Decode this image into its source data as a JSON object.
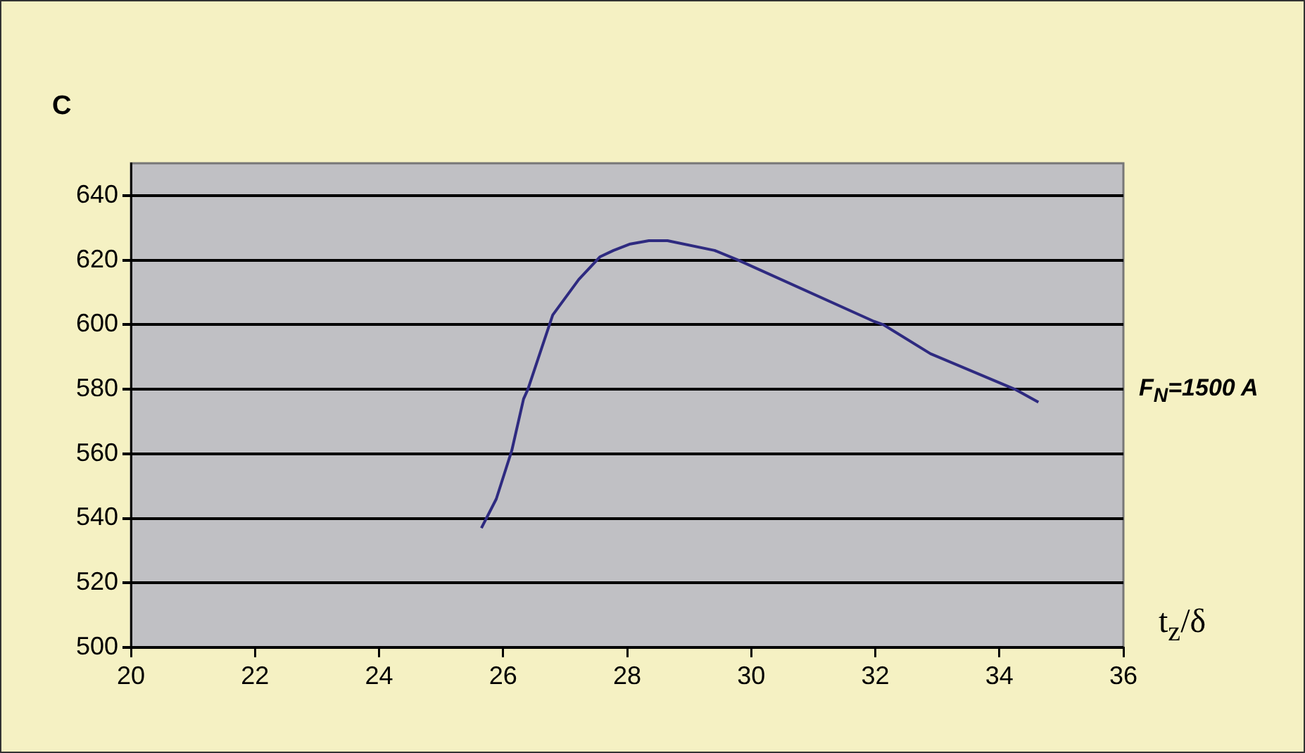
{
  "chart_data": {
    "type": "line",
    "title": "C",
    "xlabel": "t$_{z}$/δ",
    "annotations": [
      "F$_{N}$=1500 A"
    ],
    "xlim": [
      20,
      36
    ],
    "xticks": [
      20,
      22,
      24,
      26,
      28,
      30,
      32,
      34,
      36
    ],
    "ylim": [
      500,
      650
    ],
    "yticks": [
      500,
      520,
      540,
      560,
      580,
      600,
      620,
      640
    ],
    "grid": "y",
    "marker": "none",
    "line_style": "solid",
    "series": [
      {
        "color": "#2e2a80",
        "x": [
          25.65,
          25.89,
          26.14,
          26.33,
          26.4,
          26.8,
          27.22,
          27.56,
          27.78,
          28.05,
          28.35,
          28.65,
          29.41,
          29.79,
          31.98,
          32.13,
          32.89,
          34.25,
          34.63
        ],
        "values": [
          537,
          546,
          561,
          577,
          580,
          603,
          614,
          621,
          623,
          625,
          626,
          626,
          623,
          620,
          601,
          600,
          591,
          580,
          576
        ]
      }
    ]
  }
}
